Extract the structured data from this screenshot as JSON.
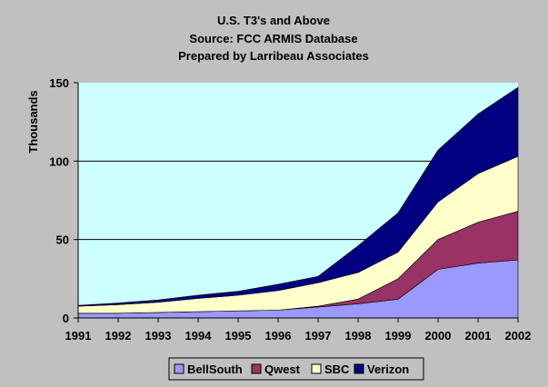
{
  "chart_data": {
    "type": "area",
    "stacked": true,
    "title": [
      "U.S. T3's and Above",
      "Source: FCC ARMIS Database",
      "Prepared by Larribeau Associates"
    ],
    "xlabel": "",
    "ylabel": "Thousands",
    "ylim": [
      0,
      150
    ],
    "yticks": [
      0,
      50,
      100,
      150
    ],
    "categories": [
      "1991",
      "1992",
      "1993",
      "1994",
      "1995",
      "1996",
      "1997",
      "1998",
      "1999",
      "2000",
      "2001",
      "2002"
    ],
    "grid": true,
    "legend_position": "bottom",
    "series": [
      {
        "name": "BellSouth",
        "color": "#9999ff",
        "values": [
          3,
          3,
          3.5,
          4,
          4.5,
          5,
          7,
          9,
          12,
          31,
          35,
          37
        ]
      },
      {
        "name": "Qwest",
        "color": "#993366",
        "values": [
          0,
          0,
          0,
          0,
          0,
          0,
          0.5,
          3,
          13,
          19,
          26,
          31
        ]
      },
      {
        "name": "SBC",
        "color": "#ffffcc",
        "values": [
          4.5,
          5.5,
          6.5,
          8.5,
          10,
          12.5,
          15,
          17,
          17,
          24,
          31,
          35
        ]
      },
      {
        "name": "Verizon",
        "color": "#000080",
        "values": [
          0.5,
          1,
          1.5,
          2,
          2.5,
          4,
          4,
          17,
          25,
          33,
          38,
          44
        ]
      }
    ],
    "plot_background": "#ccffff",
    "page_background": "#c0c0c0"
  }
}
